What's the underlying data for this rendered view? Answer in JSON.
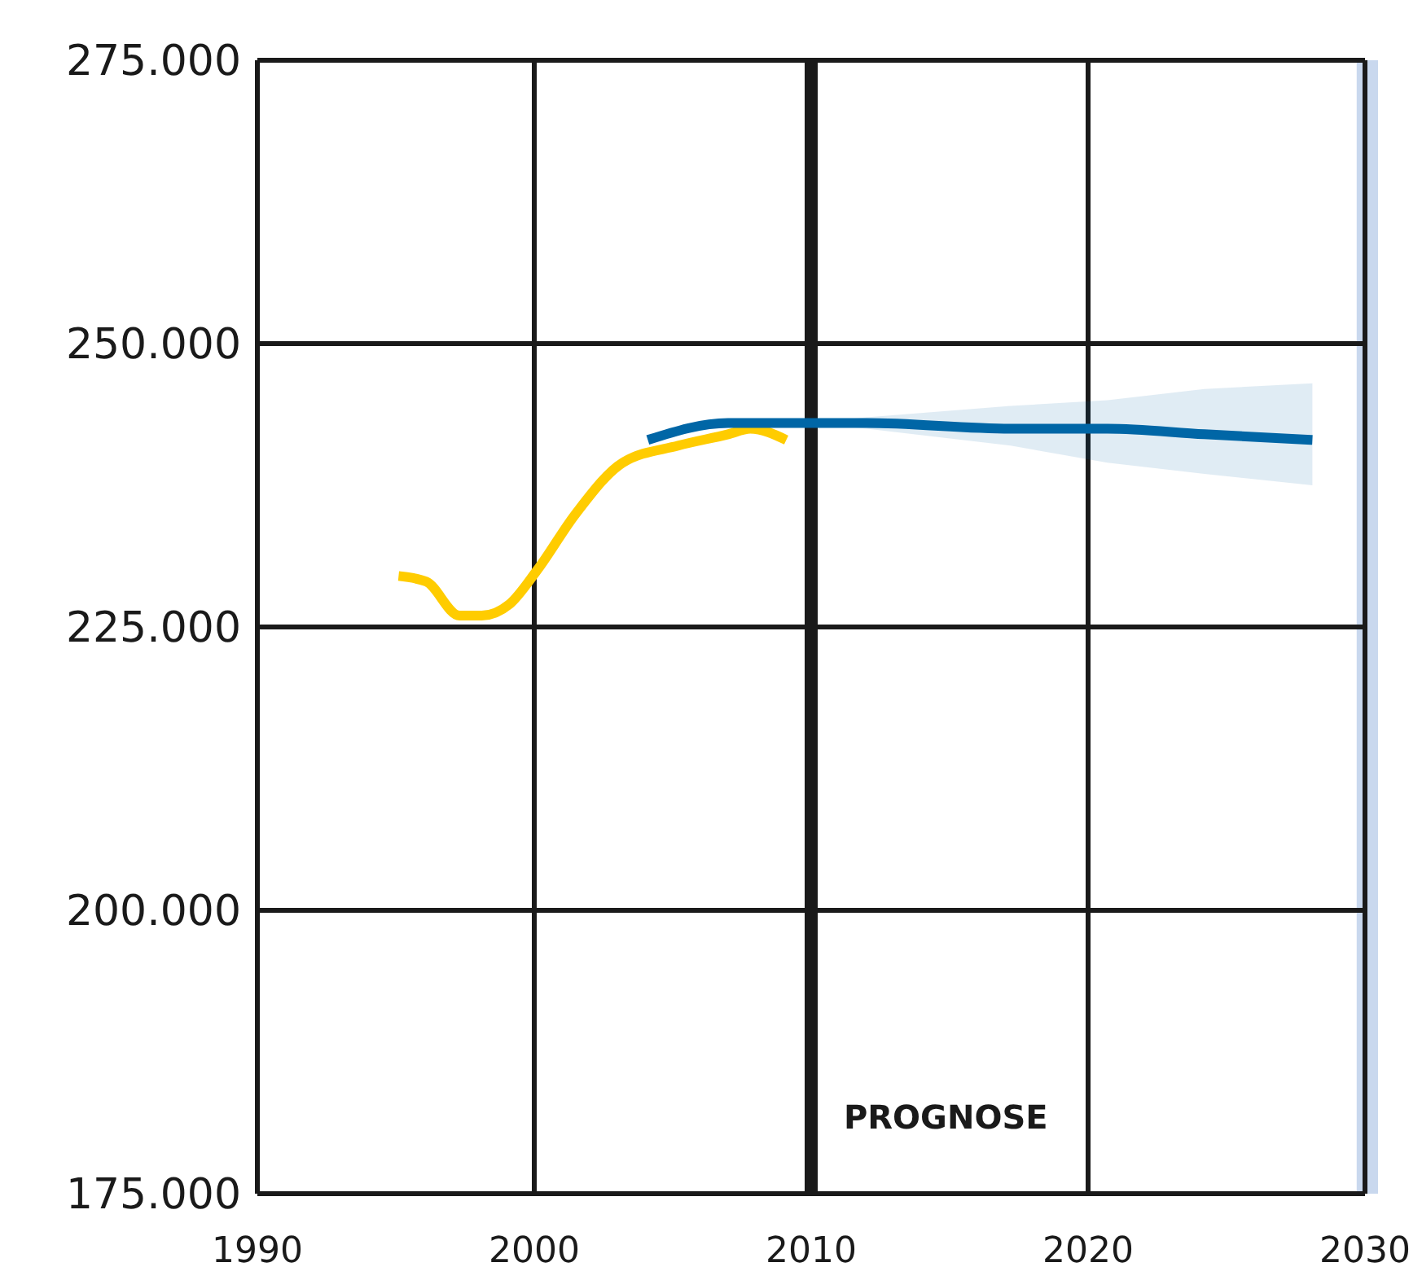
{
  "chart_data": {
    "type": "line",
    "xlim": [
      1990,
      2030
    ],
    "xticks": [
      1990,
      2000,
      2010,
      2020,
      2030
    ],
    "ylim": [
      175000,
      275000
    ],
    "yticks": [
      {
        "value": 175000,
        "label": "175.000"
      },
      {
        "value": 200000,
        "label": "200.000"
      },
      {
        "value": 225000,
        "label": "225.000"
      },
      {
        "value": 250000,
        "label": "250.000"
      },
      {
        "value": 275000,
        "label": "275.000"
      }
    ],
    "grid": true,
    "line_style": "solid",
    "marker": "none",
    "series": [
      {
        "color": "#ffcc00",
        "x": [
          1995.1,
          1996.1,
          1997.3,
          1998.1,
          1999.1,
          2000.1,
          2001.5,
          2003.2,
          2005.2,
          2007.0,
          2007.8,
          2009.1
        ],
        "values": [
          229500,
          229000,
          226000,
          226000,
          227000,
          230000,
          235000,
          239500,
          241000,
          242000,
          242500,
          241500
        ]
      },
      {
        "color": "#0066a6",
        "x": [
          2004.1,
          2007.0,
          2008.4,
          2010,
          2012,
          2017.2,
          2020.7,
          2024.2,
          2028.1
        ],
        "values": [
          241500,
          243000,
          243000,
          243000,
          243000,
          242500,
          242500,
          242000,
          241500
        ],
        "lower": [
          null,
          null,
          null,
          243000,
          242500,
          241000,
          239500,
          238500,
          237500
        ],
        "upper": [
          null,
          null,
          null,
          243000,
          243500,
          244500,
          245000,
          246000,
          246500
        ]
      }
    ],
    "ref_lines": [
      {
        "axis": "x",
        "value": 2010,
        "label": "PROGNOSE",
        "color": "#1a1a1a"
      }
    ],
    "bands": [
      {
        "axis": "x",
        "from": 2029.7,
        "to": 2030,
        "color": "#c9d8ee"
      }
    ]
  }
}
